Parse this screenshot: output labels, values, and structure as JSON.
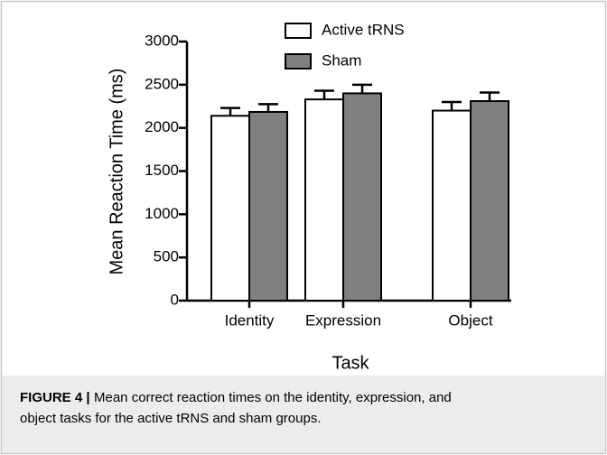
{
  "chart_data": {
    "type": "bar",
    "y_label": "Mean  Reaction Time (ms)",
    "x_label": "Task",
    "categories": [
      "Identity",
      "Expression",
      "Object"
    ],
    "series": [
      {
        "name": "Active tRNS",
        "color": "#ffffff",
        "values": [
          2140,
          2330,
          2200
        ],
        "errors": [
          90,
          100,
          100
        ]
      },
      {
        "name": "Sham",
        "color": "#808080",
        "values": [
          2185,
          2400,
          2310
        ],
        "errors": [
          90,
          100,
          100
        ]
      }
    ],
    "ylim": [
      0,
      3000
    ],
    "yticks": [
      0,
      500,
      1000,
      1500,
      2000,
      2500,
      3000
    ],
    "legend": "top",
    "caption": {
      "label": "FIGURE 4 |",
      "lines": [
        "Mean correct reaction times on the identity, expression, and",
        "object tasks for the active tRNS and sham groups."
      ]
    }
  }
}
